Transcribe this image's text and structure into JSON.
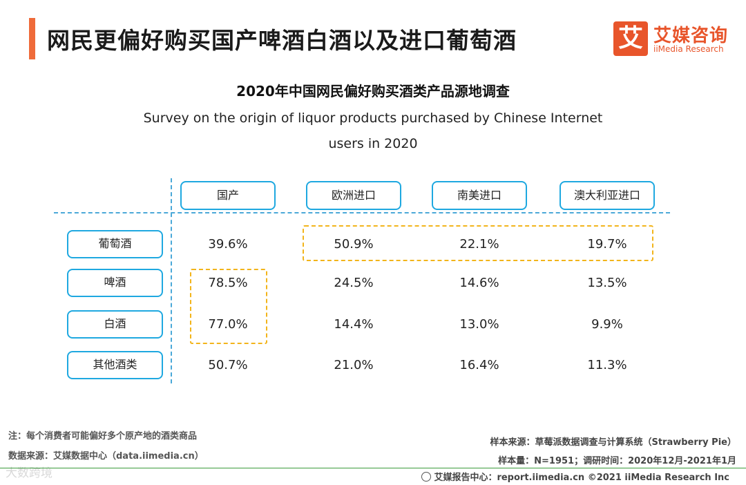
{
  "header": {
    "title": "网民更偏好购买国产啤酒白酒以及进口葡萄酒"
  },
  "logo": {
    "mark": "艾",
    "name_cn": "艾媒咨询",
    "name_en": "iiMedia Research"
  },
  "chart_data": {
    "type": "table",
    "title": "2020年中国网民偏好购买酒类产品源地调查",
    "subtitle_line1": "Survey on the origin of liquor products purchased by Chinese Internet",
    "subtitle_line2": "users in 2020",
    "columns": [
      "国产",
      "欧洲进口",
      "南美进口",
      "澳大利亚进口"
    ],
    "rows": [
      {
        "label": "葡萄酒",
        "values": [
          "39.6%",
          "50.9%",
          "22.1%",
          "19.7%"
        ]
      },
      {
        "label": "啤酒",
        "values": [
          "78.5%",
          "24.5%",
          "14.6%",
          "13.5%"
        ]
      },
      {
        "label": "白酒",
        "values": [
          "77.0%",
          "14.4%",
          "13.0%",
          "9.9%"
        ]
      },
      {
        "label": "其他酒类",
        "values": [
          "50.7%",
          "21.0%",
          "16.4%",
          "11.3%"
        ]
      }
    ],
    "highlight_color": "#f2b41a",
    "accent_color": "#1ea8e0"
  },
  "notes": {
    "note": "注：每个消费者可能偏好多个原产地的酒类商品",
    "data_source": "数据来源：艾媒数据中心（data.iimedia.cn）",
    "sample_source": "样本来源：草莓派数据调查与计算系统（Strawberry Pie）",
    "sample_size": "样本量：N=1951；调研时间：2020年12月-2021年1月"
  },
  "footer": {
    "text": "艾媒报告中心：report.iimedia.cn  ©2021  iiMedia Research  Inc"
  },
  "watermark": "大数跨境",
  "colors": {
    "title_bar": "#ef6b3a",
    "brand": "#e8552b"
  }
}
